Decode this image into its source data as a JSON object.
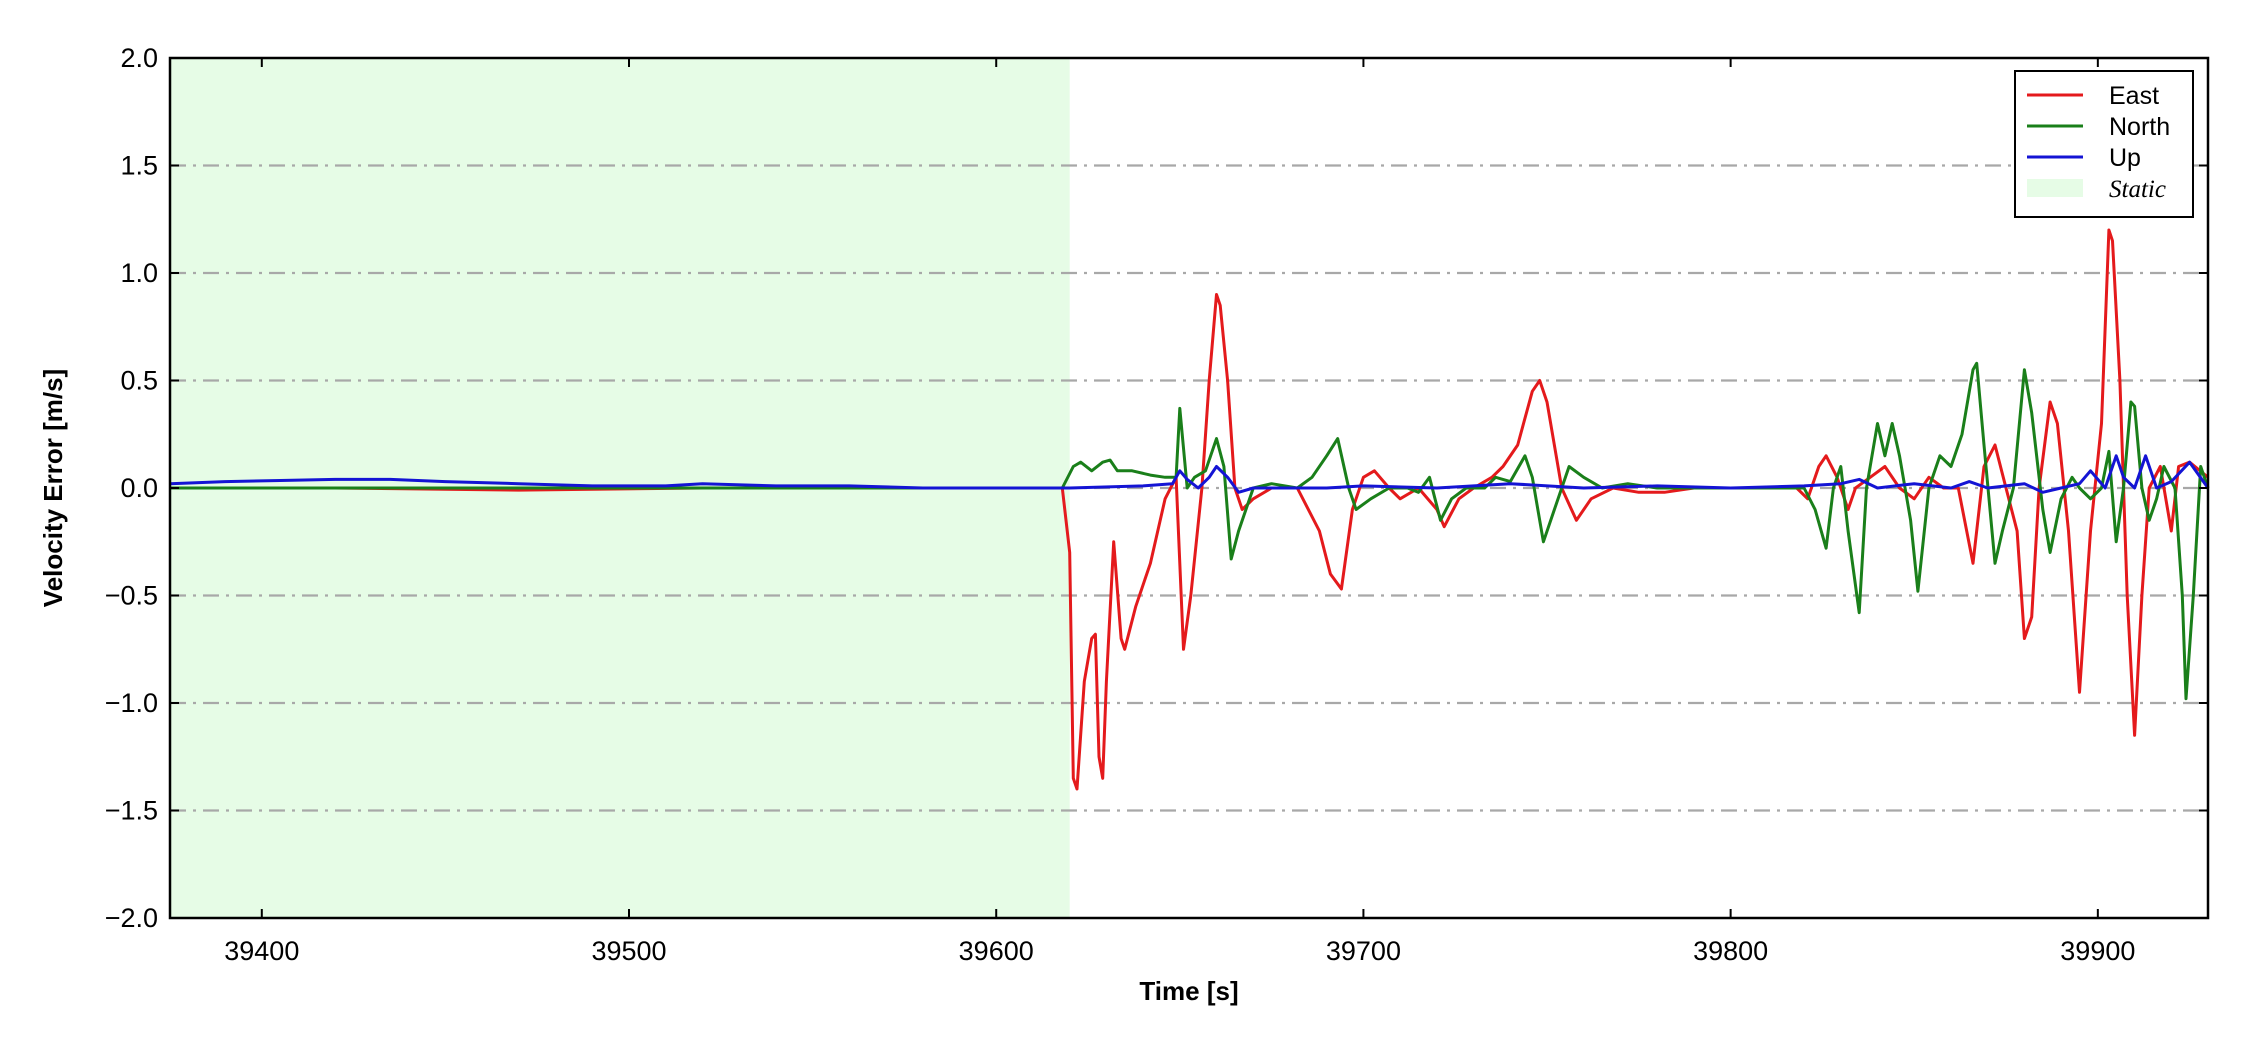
{
  "chart_data": {
    "type": "line",
    "xlabel": "Time [s]",
    "ylabel": "Velocity Error [m/s]",
    "xlim": [
      39375,
      39930
    ],
    "ylim": [
      -2.0,
      2.0
    ],
    "x_ticks": [
      39400,
      39500,
      39600,
      39700,
      39800,
      39900
    ],
    "x_tick_labels": [
      "39400",
      "39500",
      "39600",
      "39700",
      "39800",
      "39900"
    ],
    "y_ticks": [
      -2.0,
      -1.5,
      -1.0,
      -0.5,
      0.0,
      0.5,
      1.0,
      1.5,
      2.0
    ],
    "y_tick_labels": [
      "−2.0",
      "−1.5",
      "−1.0",
      "−0.5",
      "0.0",
      "0.5",
      "1.0",
      "1.5",
      "2.0"
    ],
    "grid": "horizontal dash-dot",
    "legend_position": "top-right",
    "shaded_region": {
      "label": "Static",
      "x_start": 39375,
      "x_end": 39620,
      "color": "#e6fce6"
    },
    "series": [
      {
        "name": "East",
        "color": "#e41a1c",
        "points": [
          [
            39375,
            0
          ],
          [
            39420,
            0
          ],
          [
            39470,
            -0.01
          ],
          [
            39520,
            0
          ],
          [
            39570,
            0
          ],
          [
            39600,
            0
          ],
          [
            39618,
            0
          ],
          [
            39620,
            -0.3
          ],
          [
            39621,
            -1.35
          ],
          [
            39622,
            -1.4
          ],
          [
            39624,
            -0.9
          ],
          [
            39626,
            -0.7
          ],
          [
            39627,
            -0.68
          ],
          [
            39628,
            -1.25
          ],
          [
            39629,
            -1.35
          ],
          [
            39630,
            -0.9
          ],
          [
            39632,
            -0.25
          ],
          [
            39634,
            -0.7
          ],
          [
            39635,
            -0.75
          ],
          [
            39638,
            -0.55
          ],
          [
            39642,
            -0.35
          ],
          [
            39646,
            -0.05
          ],
          [
            39649,
            0.05
          ],
          [
            39651,
            -0.75
          ],
          [
            39653,
            -0.5
          ],
          [
            39656,
            0.0
          ],
          [
            39658,
            0.5
          ],
          [
            39660,
            0.9
          ],
          [
            39661,
            0.85
          ],
          [
            39663,
            0.5
          ],
          [
            39665,
            0.0
          ],
          [
            39667,
            -0.1
          ],
          [
            39670,
            -0.05
          ],
          [
            39675,
            0.0
          ],
          [
            39682,
            0.0
          ],
          [
            39688,
            -0.2
          ],
          [
            39691,
            -0.4
          ],
          [
            39694,
            -0.47
          ],
          [
            39697,
            -0.1
          ],
          [
            39700,
            0.05
          ],
          [
            39703,
            0.08
          ],
          [
            39707,
            0.0
          ],
          [
            39710,
            -0.05
          ],
          [
            39715,
            0.0
          ],
          [
            39720,
            -0.1
          ],
          [
            39722,
            -0.18
          ],
          [
            39726,
            -0.05
          ],
          [
            39730,
            0.0
          ],
          [
            39735,
            0.05
          ],
          [
            39738,
            0.1
          ],
          [
            39742,
            0.2
          ],
          [
            39746,
            0.45
          ],
          [
            39748,
            0.5
          ],
          [
            39750,
            0.4
          ],
          [
            39754,
            0.0
          ],
          [
            39758,
            -0.15
          ],
          [
            39762,
            -0.05
          ],
          [
            39768,
            0.0
          ],
          [
            39775,
            -0.02
          ],
          [
            39782,
            -0.02
          ],
          [
            39790,
            0.0
          ],
          [
            39800,
            0.0
          ],
          [
            39812,
            0.0
          ],
          [
            39818,
            0.0
          ],
          [
            39821,
            -0.05
          ],
          [
            39824,
            0.1
          ],
          [
            39826,
            0.15
          ],
          [
            39829,
            0.05
          ],
          [
            39832,
            -0.1
          ],
          [
            39834,
            0.0
          ],
          [
            39838,
            0.05
          ],
          [
            39842,
            0.1
          ],
          [
            39846,
            0.0
          ],
          [
            39850,
            -0.05
          ],
          [
            39854,
            0.05
          ],
          [
            39858,
            0.0
          ],
          [
            39862,
            0.0
          ],
          [
            39866,
            -0.35
          ],
          [
            39869,
            0.1
          ],
          [
            39872,
            0.2
          ],
          [
            39875,
            0.0
          ],
          [
            39878,
            -0.2
          ],
          [
            39880,
            -0.7
          ],
          [
            39882,
            -0.6
          ],
          [
            39884,
            0.0
          ],
          [
            39887,
            0.4
          ],
          [
            39889,
            0.3
          ],
          [
            39892,
            -0.2
          ],
          [
            39895,
            -0.95
          ],
          [
            39898,
            -0.2
          ],
          [
            39901,
            0.3
          ],
          [
            39903,
            1.2
          ],
          [
            39904,
            1.15
          ],
          [
            39906,
            0.5
          ],
          [
            39908,
            -0.5
          ],
          [
            39910,
            -1.15
          ],
          [
            39912,
            -0.5
          ],
          [
            39914,
            0.0
          ],
          [
            39917,
            0.1
          ],
          [
            39920,
            -0.2
          ],
          [
            39922,
            0.1
          ],
          [
            39925,
            0.12
          ],
          [
            39930,
            0.05
          ]
        ]
      },
      {
        "name": "North",
        "color": "#1a7f1a",
        "points": [
          [
            39375,
            0
          ],
          [
            39420,
            0
          ],
          [
            39470,
            0
          ],
          [
            39520,
            0
          ],
          [
            39570,
            0
          ],
          [
            39618,
            0
          ],
          [
            39621,
            0.1
          ],
          [
            39623,
            0.12
          ],
          [
            39626,
            0.08
          ],
          [
            39629,
            0.12
          ],
          [
            39631,
            0.13
          ],
          [
            39633,
            0.08
          ],
          [
            39637,
            0.08
          ],
          [
            39642,
            0.06
          ],
          [
            39646,
            0.05
          ],
          [
            39649,
            0.05
          ],
          [
            39650,
            0.37
          ],
          [
            39652,
            0.0
          ],
          [
            39654,
            0.05
          ],
          [
            39657,
            0.08
          ],
          [
            39660,
            0.23
          ],
          [
            39662,
            0.1
          ],
          [
            39664,
            -0.33
          ],
          [
            39666,
            -0.2
          ],
          [
            39670,
            0.0
          ],
          [
            39675,
            0.02
          ],
          [
            39682,
            0.0
          ],
          [
            39686,
            0.05
          ],
          [
            39690,
            0.15
          ],
          [
            39693,
            0.23
          ],
          [
            39696,
            0.0
          ],
          [
            39698,
            -0.1
          ],
          [
            39702,
            -0.05
          ],
          [
            39707,
            0.0
          ],
          [
            39712,
            0.0
          ],
          [
            39715,
            -0.02
          ],
          [
            39718,
            0.05
          ],
          [
            39721,
            -0.15
          ],
          [
            39724,
            -0.05
          ],
          [
            39728,
            0.0
          ],
          [
            39733,
            0.0
          ],
          [
            39736,
            0.05
          ],
          [
            39740,
            0.03
          ],
          [
            39744,
            0.15
          ],
          [
            39746,
            0.05
          ],
          [
            39749,
            -0.25
          ],
          [
            39752,
            -0.1
          ],
          [
            39756,
            0.1
          ],
          [
            39760,
            0.05
          ],
          [
            39765,
            0.0
          ],
          [
            39772,
            0.02
          ],
          [
            39780,
            0.0
          ],
          [
            39790,
            0.0
          ],
          [
            39800,
            0.0
          ],
          [
            39815,
            0.0
          ],
          [
            39820,
            0.0
          ],
          [
            39823,
            -0.1
          ],
          [
            39826,
            -0.28
          ],
          [
            39828,
            0.0
          ],
          [
            39830,
            0.1
          ],
          [
            39832,
            -0.2
          ],
          [
            39835,
            -0.58
          ],
          [
            39837,
            0.0
          ],
          [
            39840,
            0.3
          ],
          [
            39842,
            0.15
          ],
          [
            39844,
            0.3
          ],
          [
            39846,
            0.15
          ],
          [
            39849,
            -0.15
          ],
          [
            39851,
            -0.48
          ],
          [
            39854,
            0.0
          ],
          [
            39857,
            0.15
          ],
          [
            39860,
            0.1
          ],
          [
            39863,
            0.25
          ],
          [
            39866,
            0.55
          ],
          [
            39867,
            0.58
          ],
          [
            39869,
            0.2
          ],
          [
            39872,
            -0.35
          ],
          [
            39874,
            -0.2
          ],
          [
            39877,
            0.0
          ],
          [
            39880,
            0.55
          ],
          [
            39882,
            0.35
          ],
          [
            39885,
            -0.1
          ],
          [
            39887,
            -0.3
          ],
          [
            39890,
            -0.05
          ],
          [
            39893,
            0.05
          ],
          [
            39895,
            0.0
          ],
          [
            39898,
            -0.05
          ],
          [
            39901,
            0.0
          ],
          [
            39903,
            0.17
          ],
          [
            39905,
            -0.25
          ],
          [
            39907,
            0.0
          ],
          [
            39909,
            0.4
          ],
          [
            39910,
            0.38
          ],
          [
            39912,
            0.0
          ],
          [
            39914,
            -0.15
          ],
          [
            39916,
            -0.05
          ],
          [
            39918,
            0.1
          ],
          [
            39921,
            0.0
          ],
          [
            39923,
            -0.5
          ],
          [
            39924,
            -0.98
          ],
          [
            39926,
            -0.5
          ],
          [
            39928,
            0.1
          ],
          [
            39930,
            0.0
          ]
        ]
      },
      {
        "name": "Up",
        "color": "#1414d4",
        "points": [
          [
            39375,
            0.02
          ],
          [
            39390,
            0.03
          ],
          [
            39405,
            0.035
          ],
          [
            39420,
            0.04
          ],
          [
            39435,
            0.04
          ],
          [
            39450,
            0.03
          ],
          [
            39470,
            0.02
          ],
          [
            39490,
            0.01
          ],
          [
            39510,
            0.01
          ],
          [
            39520,
            0.02
          ],
          [
            39540,
            0.01
          ],
          [
            39560,
            0.01
          ],
          [
            39580,
            0.0
          ],
          [
            39600,
            0.0
          ],
          [
            39620,
            0.0
          ],
          [
            39640,
            0.01
          ],
          [
            39648,
            0.02
          ],
          [
            39650,
            0.08
          ],
          [
            39652,
            0.04
          ],
          [
            39655,
            0.0
          ],
          [
            39658,
            0.05
          ],
          [
            39660,
            0.1
          ],
          [
            39663,
            0.05
          ],
          [
            39666,
            -0.02
          ],
          [
            39670,
            0.0
          ],
          [
            39690,
            0.0
          ],
          [
            39700,
            0.01
          ],
          [
            39720,
            0.0
          ],
          [
            39740,
            0.02
          ],
          [
            39760,
            0.0
          ],
          [
            39780,
            0.01
          ],
          [
            39800,
            0.0
          ],
          [
            39820,
            0.01
          ],
          [
            39830,
            0.02
          ],
          [
            39835,
            0.04
          ],
          [
            39840,
            0.0
          ],
          [
            39850,
            0.02
          ],
          [
            39860,
            0.0
          ],
          [
            39865,
            0.03
          ],
          [
            39870,
            0.0
          ],
          [
            39880,
            0.02
          ],
          [
            39885,
            -0.02
          ],
          [
            39890,
            0.0
          ],
          [
            39895,
            0.02
          ],
          [
            39898,
            0.08
          ],
          [
            39902,
            0.0
          ],
          [
            39905,
            0.15
          ],
          [
            39907,
            0.05
          ],
          [
            39910,
            0.0
          ],
          [
            39913,
            0.15
          ],
          [
            39916,
            0.0
          ],
          [
            39920,
            0.03
          ],
          [
            39925,
            0.12
          ],
          [
            39930,
            0.0
          ]
        ]
      }
    ]
  }
}
